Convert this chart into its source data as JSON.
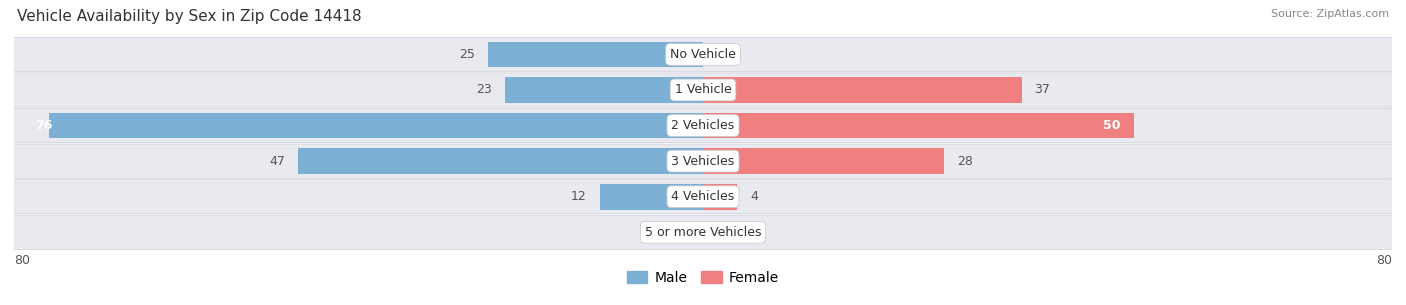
{
  "title": "Vehicle Availability by Sex in Zip Code 14418",
  "source": "Source: ZipAtlas.com",
  "categories": [
    "No Vehicle",
    "1 Vehicle",
    "2 Vehicles",
    "3 Vehicles",
    "4 Vehicles",
    "5 or more Vehicles"
  ],
  "male_values": [
    25,
    23,
    76,
    47,
    12,
    0
  ],
  "female_values": [
    0,
    37,
    50,
    28,
    4,
    0
  ],
  "male_color": "#7bafd4",
  "female_color": "#f08080",
  "bar_bg_color": "#e8eaf0",
  "row_sep_color": "#d0d0d8",
  "axis_max": 80,
  "legend_male": "Male",
  "legend_female": "Female",
  "title_fontsize": 11,
  "source_fontsize": 8,
  "label_fontsize": 9,
  "category_fontsize": 9,
  "value_label_dark": "#555555",
  "value_label_white": "#ffffff"
}
